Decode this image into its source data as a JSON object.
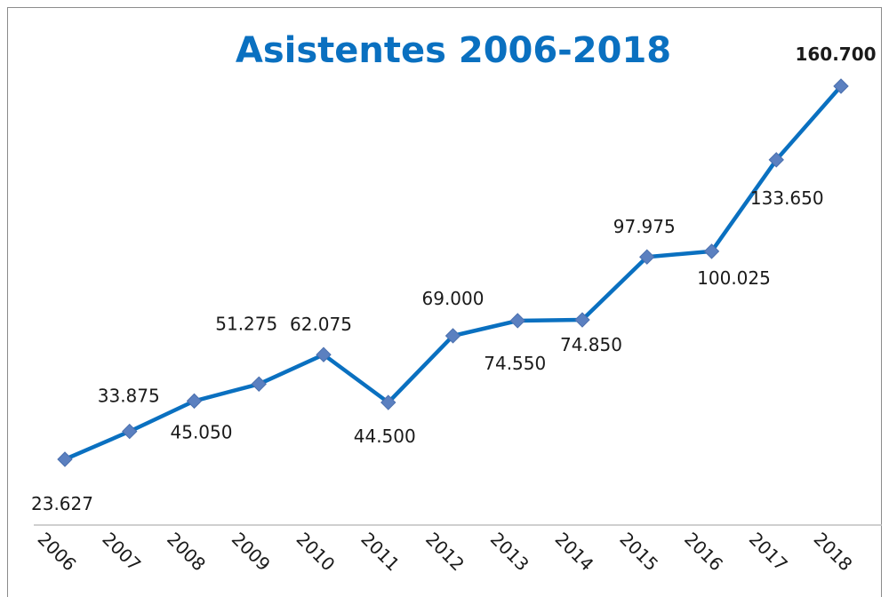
{
  "chart_data": {
    "type": "line",
    "title": "Asistentes 2006-2018",
    "categories": [
      "2006",
      "2007",
      "2008",
      "2009",
      "2010",
      "2011",
      "2012",
      "2013",
      "2014",
      "2015",
      "2016",
      "2017",
      "2018"
    ],
    "values": [
      23627,
      33875,
      45050,
      51275,
      62075,
      44500,
      69000,
      74550,
      74850,
      97975,
      100025,
      133650,
      160700
    ],
    "data_labels": [
      "23.627",
      "33.875",
      "45.050",
      "51.275",
      "62.075",
      "44.500",
      "69.000",
      "74.550",
      "74.850",
      "97.975",
      "100.025",
      "133.650",
      "160.700"
    ],
    "series_color": "#0a70c0",
    "marker_color": "#5b80c0",
    "title_color": "#0a70c0",
    "marker": "diamond",
    "grid": false,
    "legend": "none"
  }
}
